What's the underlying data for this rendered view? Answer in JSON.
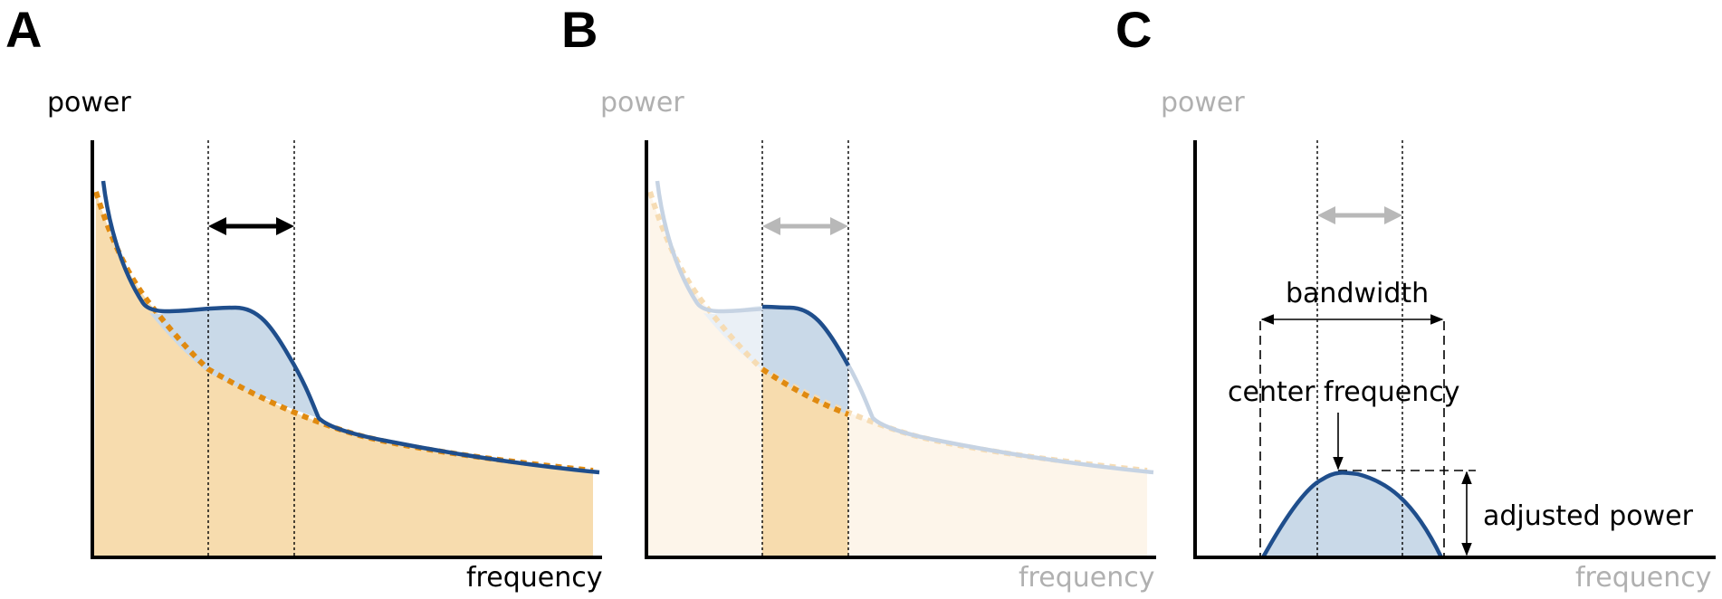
{
  "panels": [
    {
      "letter": "A",
      "ylabel": "power",
      "xlabel": "frequency"
    },
    {
      "letter": "B",
      "ylabel": "power",
      "xlabel": "frequency"
    },
    {
      "letter": "C",
      "ylabel": "power",
      "xlabel": "frequency"
    }
  ],
  "annotations": {
    "bandwidth": "bandwidth",
    "center_frequency": "center frequency",
    "adjusted_power": "adjusted power"
  },
  "colors": {
    "spectrum": "#1f4e8c",
    "aperiodic_fit": "#e08a10",
    "aperiodic_fill": "#f7dcae",
    "peak_fill": "#c9d9e8",
    "faded_label": "#b0b0b0"
  }
}
